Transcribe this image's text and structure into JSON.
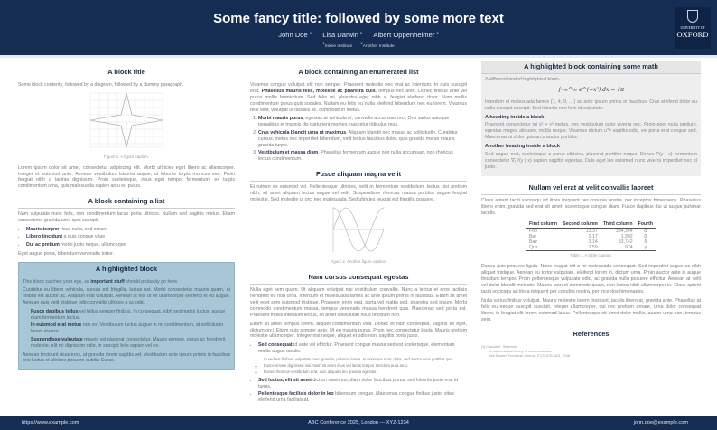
{
  "header": {
    "title": "Some fancy title: followed by some more text",
    "authors": [
      {
        "name": "John Doe",
        "sup": "1"
      },
      {
        "name": "Lisa Darwin",
        "sup": "2"
      },
      {
        "name": "Albert Oppenheimer",
        "sup": "2"
      }
    ],
    "affiliations": [
      {
        "sup": "1",
        "name": "Some Institute"
      },
      {
        "sup": "2",
        "name": "Another Institute"
      }
    ],
    "logo": {
      "line1": "UNIVERSITY OF",
      "line2": "OXFORD"
    }
  },
  "left": {
    "block1": {
      "title": "A block title",
      "intro": "Some block contents, followed by a diagram, followed by a dummy paragraph.",
      "caption": "Figure 1. A figure caption.",
      "para": "Lorem ipsum dolor sit amet, consectetur adipiscing elit. Morbi ultricies eget libero ac ullamcorper. Integer et euismod ante. Aenean vestibulum lobortis augue, ut lobortis turpis rhoncus sed. Proin feugiat nibh a lacinia dignissim. Proin scelerisque, risus eget tempor fermentum, ex turpis condimentum urna, quis malesuada sapien arcu eu purus."
    },
    "block2": {
      "title": "A block containing a list",
      "intro": "Nam vulputate nunc felis, non condimentum lacus porta ultrices. Nullam sed sagittis metus. Etiam consectetur gravida urna quis suscipit.",
      "items": [
        {
          "b": "Mauris tempor",
          "t": " risus nulla, sed ornare"
        },
        {
          "b": "Libero tincidunt",
          "t": " a duis congue vitae"
        },
        {
          "b": "Dui ac pretium",
          "t": " morbi justo neque, ullamcorper"
        }
      ],
      "outro": "Eget augue porta, bibendum venenatis tortor."
    },
    "highlight": {
      "title": "A highlighted block",
      "p1a": "This block catches your eye, so ",
      "p1b": "important stuff",
      "p1c": " should probably go here.",
      "p2": "Curabitur eu libero vehicula, cursus est fringilla, luctus est. Morbi consectetur mauris quam, at finibus elit auctor ac. Aliquam erat volutpat. Aenean at nisl ut ex ullamcorper eleifend et eu augue. Aenean quis velit tristique odio convallis ultrices a ac odio.",
      "items": [
        {
          "b": "Fusce dapibus tellus",
          "t": " vel tellus semper finibus. In consequat, nibh sed mattis luctus, augue diam fermentum lectus."
        },
        {
          "b": "In euismod erat metus",
          "t": " non ex. Vestibulum luctus augue in mi condimentum, at sollicitudin lorem viverra."
        },
        {
          "b": "Suspendisse vulputate",
          "t": " mauris vel placerat consectetur. Mauris semper, purus ac hendrerit molestie, elit mi dignissim odio, in suscipit felis sapien vel ex."
        }
      ],
      "p3": "Aenean tincidunt risus eros, at gravida lorem sagittis vel. Vestibulum ante ipsum primis in faucibus orci luctus et ultrices posuere cubilia Curae."
    }
  },
  "middle": {
    "block1": {
      "title": "A block containing an enumerated list",
      "pa": "Vivamus congue volutpat elit non semper. Praesent molestie nec erat ac interdum. In quis suscipit erat. ",
      "pb": "Phasellus mauris felis, molestie ac pharetra quis",
      "pc": ", tempus nec ante. Donec finibus ante vel purus mollis fermentum. Sed felis mi, pharetra eget nibh a, feugiat eleifend dolor. Nam mollis condimentum purus quis sodales. Nullam eu felis eu nulla eleifend bibendum nec eu lorem. Vivamus felis velit, volutpat ut facilisis ac, commodo in metus.",
      "items": [
        {
          "b": "Morbi mauris purus",
          "t": ", egestas at vehicula et, convallis accumsan orci. Orci varius natoque penatibus et magnis dis parturient montes, nascetur ridiculus mus."
        },
        {
          "b": "Cras vehicula blandit urna ut maximus",
          "t": ". Aliquam blandit nec massa ac sollicitudin. Curabitur cursus, metus nec imperdiet bibendum, velit lectus faucibus dolor, quis gravida metus mauris gravida turpis."
        },
        {
          "b": "Vestibulum et massa diam",
          "t": ". Phasellus fermentum augue non nulla accumsan, non rhoncus lectus condimentum."
        }
      ]
    },
    "block2": {
      "title": "Fusce aliquam magna velit",
      "para": "Et rutrum ex euismod vel. Pellentesque ultricies, velit in fermentum vestibulum, lectus nisi pretium nibh, sit amet aliquam lectus augue vel velit. Suspendisse rhoncus massa porttitor augue feugiat molestie. Sed molestie ut orci nec malesuada. Sed ultricies feugiat est fringilla posuere.",
      "caption": "Figure 2. Another figure caption."
    },
    "block3": {
      "title": "Nam cursus consequat egestas",
      "p1": "Nulla eget sem quam. Ut aliquam volutpat nisi vestibulum convallis. Nunc a lectus et eros facilisis hendrerit eu non urna. Interdum et malesuada fames ac ante ipsum primis in faucibus. Etiam sit amet velit eget sem euismod tristique. Praesent enim erat, porta vel mattis sed, pharetra sed ipsum. Morbi commodo condimentum massa, tempus venenatis massa hendrerit quis. Maecenas sed porta est. Praesent mollis interdum lectus, sit amet sollicitudin risus tincidunt non.",
      "p2": "Etiam sit amet tempus lorem, aliquet condimentum velit. Donec et nibh consequat, sagittis ex eget, dictum orci. Etiam quis semper ante. Ut eu mauris purus. Proin nec consectetur ligula. Mauris pretium molestie ullamcorper. Integer nisi neque, aliquet et odio non, sagittis porta justo.",
      "items": [
        {
          "b": "Sed consequat",
          "t": " id ante vel efficitur. Praesent congue massa sed est scelerisque, elementum mollis augue iaculis.",
          "sub": [
            "In sed est finibus, vulputate nunc gravida, pulvinar lorem. In maximus nunc dolor, sed auctor eros porttitor quis.",
            "Fusce ornare dignissim nisi. Nam sit amet risus vel lacus tempor tincidunt eu a arcu.",
            "Donec rhoncus vestibulum erat, quis aliquam leo gravida egestas."
          ]
        },
        {
          "b": "Sed luctus, elit sit amet",
          "t": " dictum maximus, diam dolor faucibus purus, sed lobortis justo erat id turpis."
        },
        {
          "b": "Pellentesque facilisis dolor in leo",
          "t": " bibendum congue. Maecenas congue finibus justo, vitae eleifend urna facilisis at."
        }
      ]
    }
  },
  "right": {
    "highlight": {
      "title": "A highlighted block containing some math",
      "intro": "A different kind of highlighted block.",
      "equation": "∫₋∞^∞ e^(−x²) dx = √π",
      "p1": "Interdum et malesuada fames {1, 4, 9, …} ac ante ipsum primis in faucibus. Cras eleifend dolor eu nulla suscipit suscipit. Sed lobortis non felis id vulputate.",
      "h1": "A heading inside a block",
      "p2": "Praesent consectetur mi x² + y² metus, nec vestibulum justo viverra nec. Proin eget nulla pretium, egestas magna aliquam, mollis neque. Vivamus dictum uᵀv sagittis odio, vel porta erat congue sed. Maecenas ut dolor quis arcu auctor porttitor.",
      "h2": "Another heading inside a block",
      "p3": "Sed augue erat, scelerisque a purus ultricies, placerat porttitor neque. Donec P(y | x) fermentum consectetur ∇ₓP(y | x) sapien sagittis egestas. Duis eget leo euismod nunc viverra imperdiet nec id justo."
    },
    "block2": {
      "title": "Nullam vel erat at velit convallis laoreet",
      "p1": "Class aptent taciti sociosqu ad litora torquent per conubia nostra, per inceptos himenaeos. Phasellus libero enim, gravida sed erat sit amet, scelerisque congue diam. Fusce dapibus dui ut augue pulvinar iaculis.",
      "table": {
        "headers": [
          "First column",
          "Second column",
          "Third column",
          "Fourth"
        ],
        "rows": [
          [
            "Foo",
            "13.37",
            "384,394",
            "α"
          ],
          [
            "Bar",
            "2.17",
            "1,392",
            "β"
          ],
          [
            "Baz",
            "3.14",
            "83,742",
            "δ"
          ],
          [
            "Qux",
            "7.59",
            "974",
            "γ"
          ]
        ]
      },
      "caption": "Table 1. A table caption.",
      "p2": "Donec quis posuere ligula. Nunc feugiat elit a mi malesuada consequat. Sed imperdiet augue ac nibh aliquet tristique. Aenean eu tortor vulputate, eleifend lorem in, dictum urna. Proin auctor ante in augue tincidunt tempor. Proin pellentesque vulputate odio, ac gravida nulla posuere efficitur. Aenean at velit vel dolor blandit molestie. Mauris laoreet commodo quam, non luctus nibh ullamcorper in. Class aptent taciti sociosqu ad litora torquent per conubia nostra, per inceptos himenaeos.",
      "p3": "Nulla varius finibus volutpat. Mauris molestie lorem tincidunt, iaculis libero at, gravida ante. Phasellus at felis eu neque suscipit suscipit. Integer ullamcorper, dui nec pretium ornare, urna dolor consequat libero, in feugiat elit lorem euismod lacus. Pellentesque sit amet dolor mollis, auctor urna non, tempus sem."
    },
    "references": {
      "title": "References",
      "items": [
        {
          "num": "[1]",
          "author": "Claude E. Shannon.",
          "title": "A mathematical theory of communication.",
          "source": "Bell System Technical Journal, 27(3):379–423, 1948."
        }
      ]
    }
  },
  "footer": {
    "left": "https://www.example.com",
    "center": "ABC Conference 2025, London — XYZ-1234",
    "right": "john.doe@example.com"
  },
  "colors": {
    "header": "#152d53",
    "highlight": "#a7c6d6",
    "math_block": "#eeeeee"
  }
}
